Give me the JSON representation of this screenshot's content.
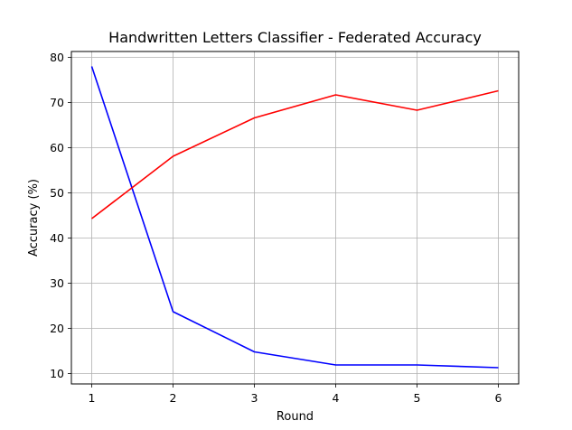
{
  "chart_data": {
    "type": "line",
    "title": "Handwritten Letters Classifier - Federated Accuracy",
    "xlabel": "Round",
    "ylabel": "Accuracy (%)",
    "x": [
      1,
      2,
      3,
      4,
      5,
      6
    ],
    "xlim": [
      0.75,
      6.25
    ],
    "ylim": [
      7.7,
      81.3
    ],
    "xticks": [
      "1",
      "2",
      "3",
      "4",
      "5",
      "6"
    ],
    "yticks": [
      "10",
      "20",
      "30",
      "40",
      "50",
      "60",
      "70",
      "80"
    ],
    "grid": true,
    "legend": "none",
    "series": [
      {
        "color": "#0000ff",
        "values": [
          78.0,
          23.7,
          14.8,
          11.9,
          11.9,
          11.3
        ]
      },
      {
        "color": "#ff0000",
        "values": [
          44.3,
          58.1,
          66.6,
          71.7,
          68.3,
          72.6
        ]
      }
    ]
  }
}
